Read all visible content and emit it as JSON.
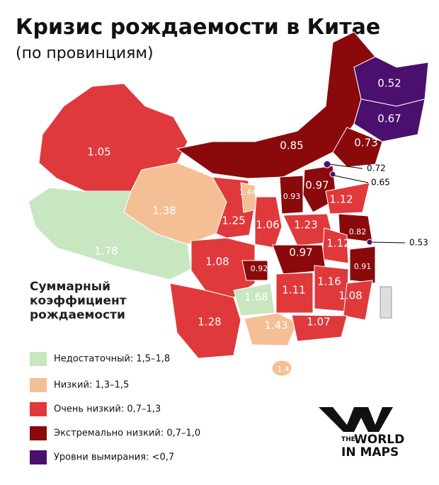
{
  "title": "Кризис рождаемости в Китае",
  "subtitle": "(по провинциям)",
  "regions": [
    "0.52",
    "0.67",
    "0.73",
    "0.85",
    "1.05",
    "0.72",
    "0.65",
    "0.93",
    "0.97",
    "1.12",
    "1.44",
    "1.38",
    "1.25",
    "1.06",
    "1.23",
    "0.82",
    "0.53",
    "1.12",
    "1.78",
    "0.97",
    "1.08",
    "0.92",
    "0.91",
    "1.16",
    "1.11",
    "1.08",
    "1.68",
    "1.28",
    "1.43",
    "1.07",
    "1.4"
  ],
  "legend": {
    "title": [
      "Суммарный",
      "коэффициент",
      "рождаемости"
    ],
    "items": [
      {
        "label": "Недостаточный: 1,5–1,8",
        "color": "#c8e6c0"
      },
      {
        "label": "Низкий: 1,3–1,5",
        "color": "#f5bf96"
      },
      {
        "label": "Очень низкий: 0,7–1,3",
        "color": "#e0393b"
      },
      {
        "label": "Экстремально низкий: 0,7–1,0",
        "color": "#8a0a0c"
      },
      {
        "label": "Уровни вымирания: <0,7",
        "color": "#4b0f6e"
      }
    ]
  },
  "logo": [
    "THE",
    "WORLD",
    "IN MAPS"
  ]
}
